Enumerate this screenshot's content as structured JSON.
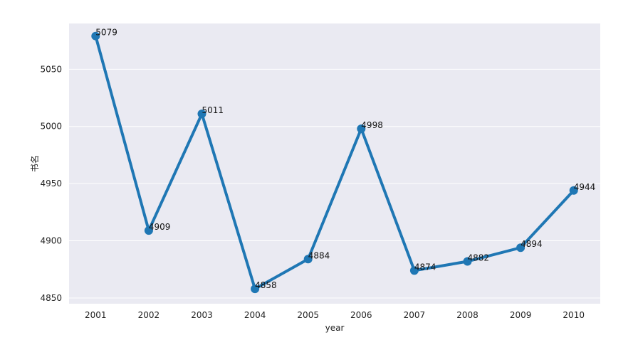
{
  "chart_data": {
    "type": "line",
    "title": "",
    "xlabel": "year",
    "ylabel": "书名",
    "categories": [
      "2001",
      "2002",
      "2003",
      "2004",
      "2005",
      "2006",
      "2007",
      "2008",
      "2009",
      "2010"
    ],
    "series": [
      {
        "values": [
          5079,
          4909,
          5011,
          4858,
          4884,
          4998,
          4874,
          4882,
          4894,
          4944
        ]
      }
    ],
    "y_ticks": [
      4850,
      4900,
      4950,
      5000,
      5050
    ],
    "ylim": [
      4845,
      5090
    ],
    "grid": true,
    "data_labels": true,
    "colors": {
      "line": "#1f77b4",
      "plot_background": "#eaeaf2",
      "grid": "#ffffff"
    }
  }
}
